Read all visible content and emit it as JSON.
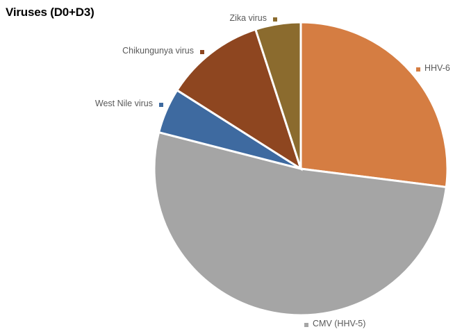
{
  "chart_data": {
    "type": "pie",
    "title": "Viruses (D0+D3)",
    "legend": "inline labels beside slices",
    "slices": [
      {
        "label": "HHV-6",
        "value": 27,
        "color": "#D57D42"
      },
      {
        "label": "CMV (HHV-5)",
        "value": 52,
        "color": "#A5A5A5"
      },
      {
        "label": "West Nile virus",
        "value": 5,
        "color": "#3E6AA0"
      },
      {
        "label": "Chikungunya virus",
        "value": 11,
        "color": "#8E4620"
      },
      {
        "label": "Zika virus",
        "value": 5,
        "color": "#8B6B2E"
      }
    ]
  }
}
